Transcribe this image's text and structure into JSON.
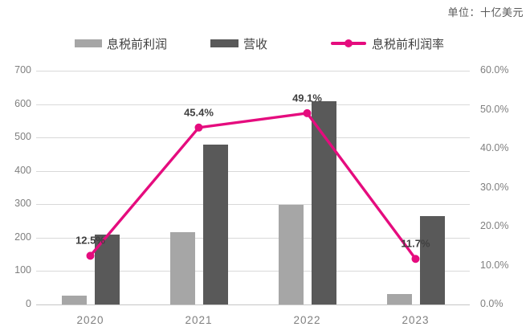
{
  "unit_label": "单位：十亿美元",
  "legend": [
    {
      "label": "息税前利润",
      "color": "#a6a6a6",
      "marker": "bar-swatch"
    },
    {
      "label": "营收",
      "color": "#595959",
      "marker": "bar-swatch"
    },
    {
      "label": "息税前利润率",
      "color": "#e50c7e",
      "marker": "line-with-dot"
    }
  ],
  "chart_data": {
    "type": "bar",
    "subtype": "grouped-bars-with-line-overlay",
    "title": "",
    "categories": [
      "2020",
      "2021",
      "2022",
      "2023"
    ],
    "series": [
      {
        "name": "息税前利润",
        "type": "bar",
        "axis": "left",
        "color": "#a6a6a6",
        "values": [
          26,
          217,
          298,
          31
        ]
      },
      {
        "name": "营收",
        "type": "bar",
        "axis": "left",
        "color": "#595959",
        "values": [
          210,
          478,
          608,
          264
        ]
      },
      {
        "name": "息税前利润率",
        "type": "line",
        "axis": "right",
        "color": "#e50c7e",
        "values": [
          12.5,
          45.4,
          49.1,
          11.7
        ],
        "point_labels": [
          "12.5%",
          "45.4%",
          "49.1%",
          "11.7%"
        ]
      }
    ],
    "left_axis": {
      "min": 0,
      "max": 700,
      "ticks": [
        "0",
        "100",
        "200",
        "300",
        "400",
        "500",
        "600",
        "700"
      ]
    },
    "right_axis": {
      "min": 0,
      "max": 60,
      "ticks": [
        "0.0%",
        "10.0%",
        "20.0%",
        "30.0%",
        "40.0%",
        "50.0%",
        "60.0%"
      ]
    },
    "grid": true,
    "gridline_color": "#d9d9d9",
    "baseline_color": "#c6c6c6",
    "axis_label_color": "#7f7f7f",
    "legend_position": "top"
  }
}
